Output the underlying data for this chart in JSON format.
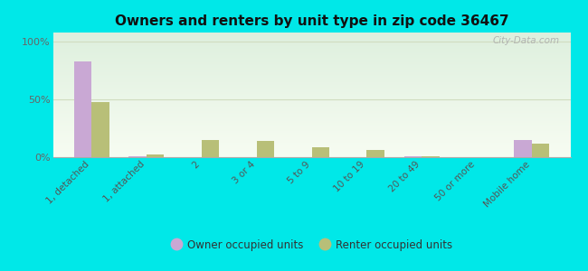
{
  "title": "Owners and renters by unit type in zip code 36467",
  "categories": [
    "1, detached",
    "1, attached",
    "2",
    "3 or 4",
    "5 to 9",
    "10 to 19",
    "20 to 49",
    "50 or more",
    "Mobile home"
  ],
  "owner_values": [
    83,
    1,
    0,
    0,
    0,
    0,
    1,
    0,
    15
  ],
  "renter_values": [
    48,
    2,
    15,
    14,
    9,
    6,
    1,
    0,
    12
  ],
  "owner_color": "#c9a8d4",
  "renter_color": "#b8bf78",
  "outer_bg": "#00e8e8",
  "ylabel_ticks": [
    0,
    50,
    100
  ],
  "ylabel_labels": [
    "0%",
    "50%",
    "100%"
  ],
  "ylim": [
    0,
    108
  ],
  "bar_width": 0.32,
  "legend_owner": "Owner occupied units",
  "legend_renter": "Renter occupied units",
  "watermark": "City-Data.com",
  "grid_color": "#d0dcc0",
  "bg_gradient_top": "#ddeedd",
  "bg_gradient_bottom": "#f8fbf0"
}
